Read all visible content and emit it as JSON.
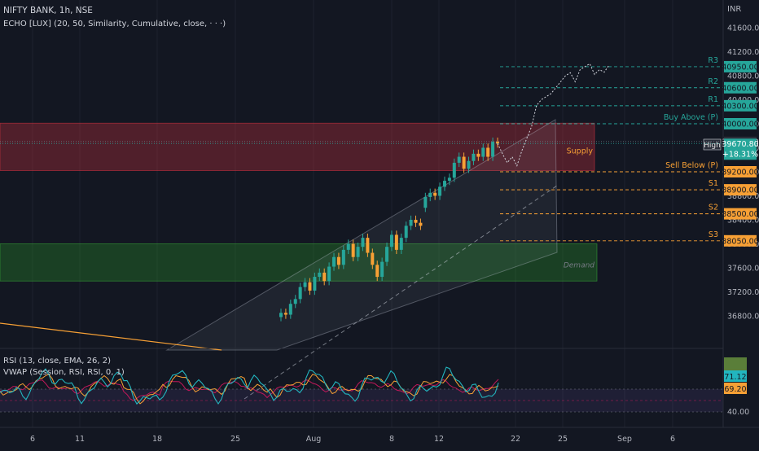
{
  "header": {
    "symbol_line": "NIFTY BANK, 1h, NSE",
    "indicator_line": "ECHO [LUX] (20, 50, Similarity, Cumulative, close, · · ·)"
  },
  "rsi_panel": {
    "label1": "RSI (13, close, EMA, 26, 2)",
    "label2": "VWAP (Session, RSI, RSI, 0, 1)"
  },
  "colors": {
    "background": "#131722",
    "up": "#26a69a",
    "down": "#f7a035",
    "supply_zone": "#f23645",
    "demand_zone": "#2ca02c",
    "resistance": "#26a69a",
    "support": "#f7a035",
    "rsi_line": "#22b5bf",
    "rsi_vwap": "#c2185b",
    "rsi_signal": "#f7a035"
  },
  "chart_data": {
    "type": "candlestick",
    "currency": "INR",
    "price_range": [
      36640,
      41700
    ],
    "date_labels": [
      "6",
      "11",
      "18",
      "25",
      "Aug",
      "8",
      "12",
      "22",
      "25",
      "Sep",
      "6"
    ],
    "price_ticks": [
      "41600.00",
      "41200.00",
      "40800.00",
      "40400.00",
      "40000.00",
      "39600.00",
      "39200.00",
      "38800.00",
      "38400.00",
      "38000.00",
      "37600.00",
      "37200.00",
      "36800.00"
    ],
    "levels": [
      {
        "label": "R3",
        "value": "40950.00",
        "price": 40950,
        "kind": "resistance"
      },
      {
        "label": "R2",
        "value": "40600.00",
        "price": 40600,
        "kind": "resistance"
      },
      {
        "label": "R1",
        "value": "40300.00",
        "price": 40300,
        "kind": "resistance"
      },
      {
        "label": "Buy Above (P)",
        "value": "40000.00",
        "price": 40000,
        "kind": "resistance"
      },
      {
        "label": "Sell Below (P)",
        "value": "39200.00",
        "price": 39200,
        "kind": "support"
      },
      {
        "label": "S1",
        "value": "38900.00",
        "price": 38900,
        "kind": "support"
      },
      {
        "label": "S2",
        "value": "38500.00",
        "price": 38500,
        "kind": "support"
      },
      {
        "label": "S3",
        "value": "38050.00",
        "price": 38050,
        "kind": "support"
      }
    ],
    "high_marker": {
      "label": "High",
      "value": "39703.70",
      "price": 39703.7
    },
    "last_price": {
      "value": "39670.80",
      "change": "+18.31%",
      "price": 39670.8
    },
    "zones": [
      {
        "label": "Supply",
        "from": 39220,
        "to": 40010
      },
      {
        "label": "Demand",
        "from": 37380,
        "to": 38000
      }
    ],
    "candles": [
      {
        "o": 36780,
        "c": 36850
      },
      {
        "o": 36850,
        "c": 36820
      },
      {
        "o": 36820,
        "c": 37000
      },
      {
        "o": 37000,
        "c": 37080
      },
      {
        "o": 37080,
        "c": 37280
      },
      {
        "o": 37280,
        "c": 37360
      },
      {
        "o": 37360,
        "c": 37220
      },
      {
        "o": 37220,
        "c": 37450
      },
      {
        "o": 37450,
        "c": 37520
      },
      {
        "o": 37520,
        "c": 37380
      },
      {
        "o": 37380,
        "c": 37620
      },
      {
        "o": 37620,
        "c": 37780
      },
      {
        "o": 37780,
        "c": 37650
      },
      {
        "o": 37650,
        "c": 37900
      },
      {
        "o": 37900,
        "c": 38000
      },
      {
        "o": 38000,
        "c": 37780
      },
      {
        "o": 37780,
        "c": 37950
      },
      {
        "o": 37950,
        "c": 38100
      },
      {
        "o": 38100,
        "c": 37850
      },
      {
        "o": 37850,
        "c": 37650
      },
      {
        "o": 37650,
        "c": 37450
      },
      {
        "o": 37450,
        "c": 37700
      },
      {
        "o": 37700,
        "c": 37950
      },
      {
        "o": 37950,
        "c": 38150
      },
      {
        "o": 38150,
        "c": 37900
      },
      {
        "o": 37900,
        "c": 38100
      },
      {
        "o": 38100,
        "c": 38300
      },
      {
        "o": 38300,
        "c": 38400
      },
      {
        "o": 38400,
        "c": 38350
      },
      {
        "o": 38350,
        "c": 38300
      },
      {
        "o": 38600,
        "c": 38780
      },
      {
        "o": 38780,
        "c": 38850
      },
      {
        "o": 38850,
        "c": 38800
      },
      {
        "o": 38800,
        "c": 38950
      },
      {
        "o": 38950,
        "c": 39050
      },
      {
        "o": 39050,
        "c": 39100
      },
      {
        "o": 39100,
        "c": 39350
      },
      {
        "o": 39350,
        "c": 39450
      },
      {
        "o": 39450,
        "c": 39250
      },
      {
        "o": 39250,
        "c": 39380
      },
      {
        "o": 39380,
        "c": 39500
      },
      {
        "o": 39500,
        "c": 39450
      },
      {
        "o": 39450,
        "c": 39600
      },
      {
        "o": 39600,
        "c": 39450
      },
      {
        "o": 39450,
        "c": 39700
      },
      {
        "o": 39700,
        "c": 39671
      }
    ],
    "forecast": [
      39671,
      39500,
      39350,
      39450,
      39300,
      39550,
      39750,
      39950,
      40300,
      40400,
      40450,
      40500,
      40600,
      40700,
      40800,
      40850,
      40700,
      40900,
      40950,
      41000,
      40820,
      40900,
      40860,
      40980
    ]
  }
}
